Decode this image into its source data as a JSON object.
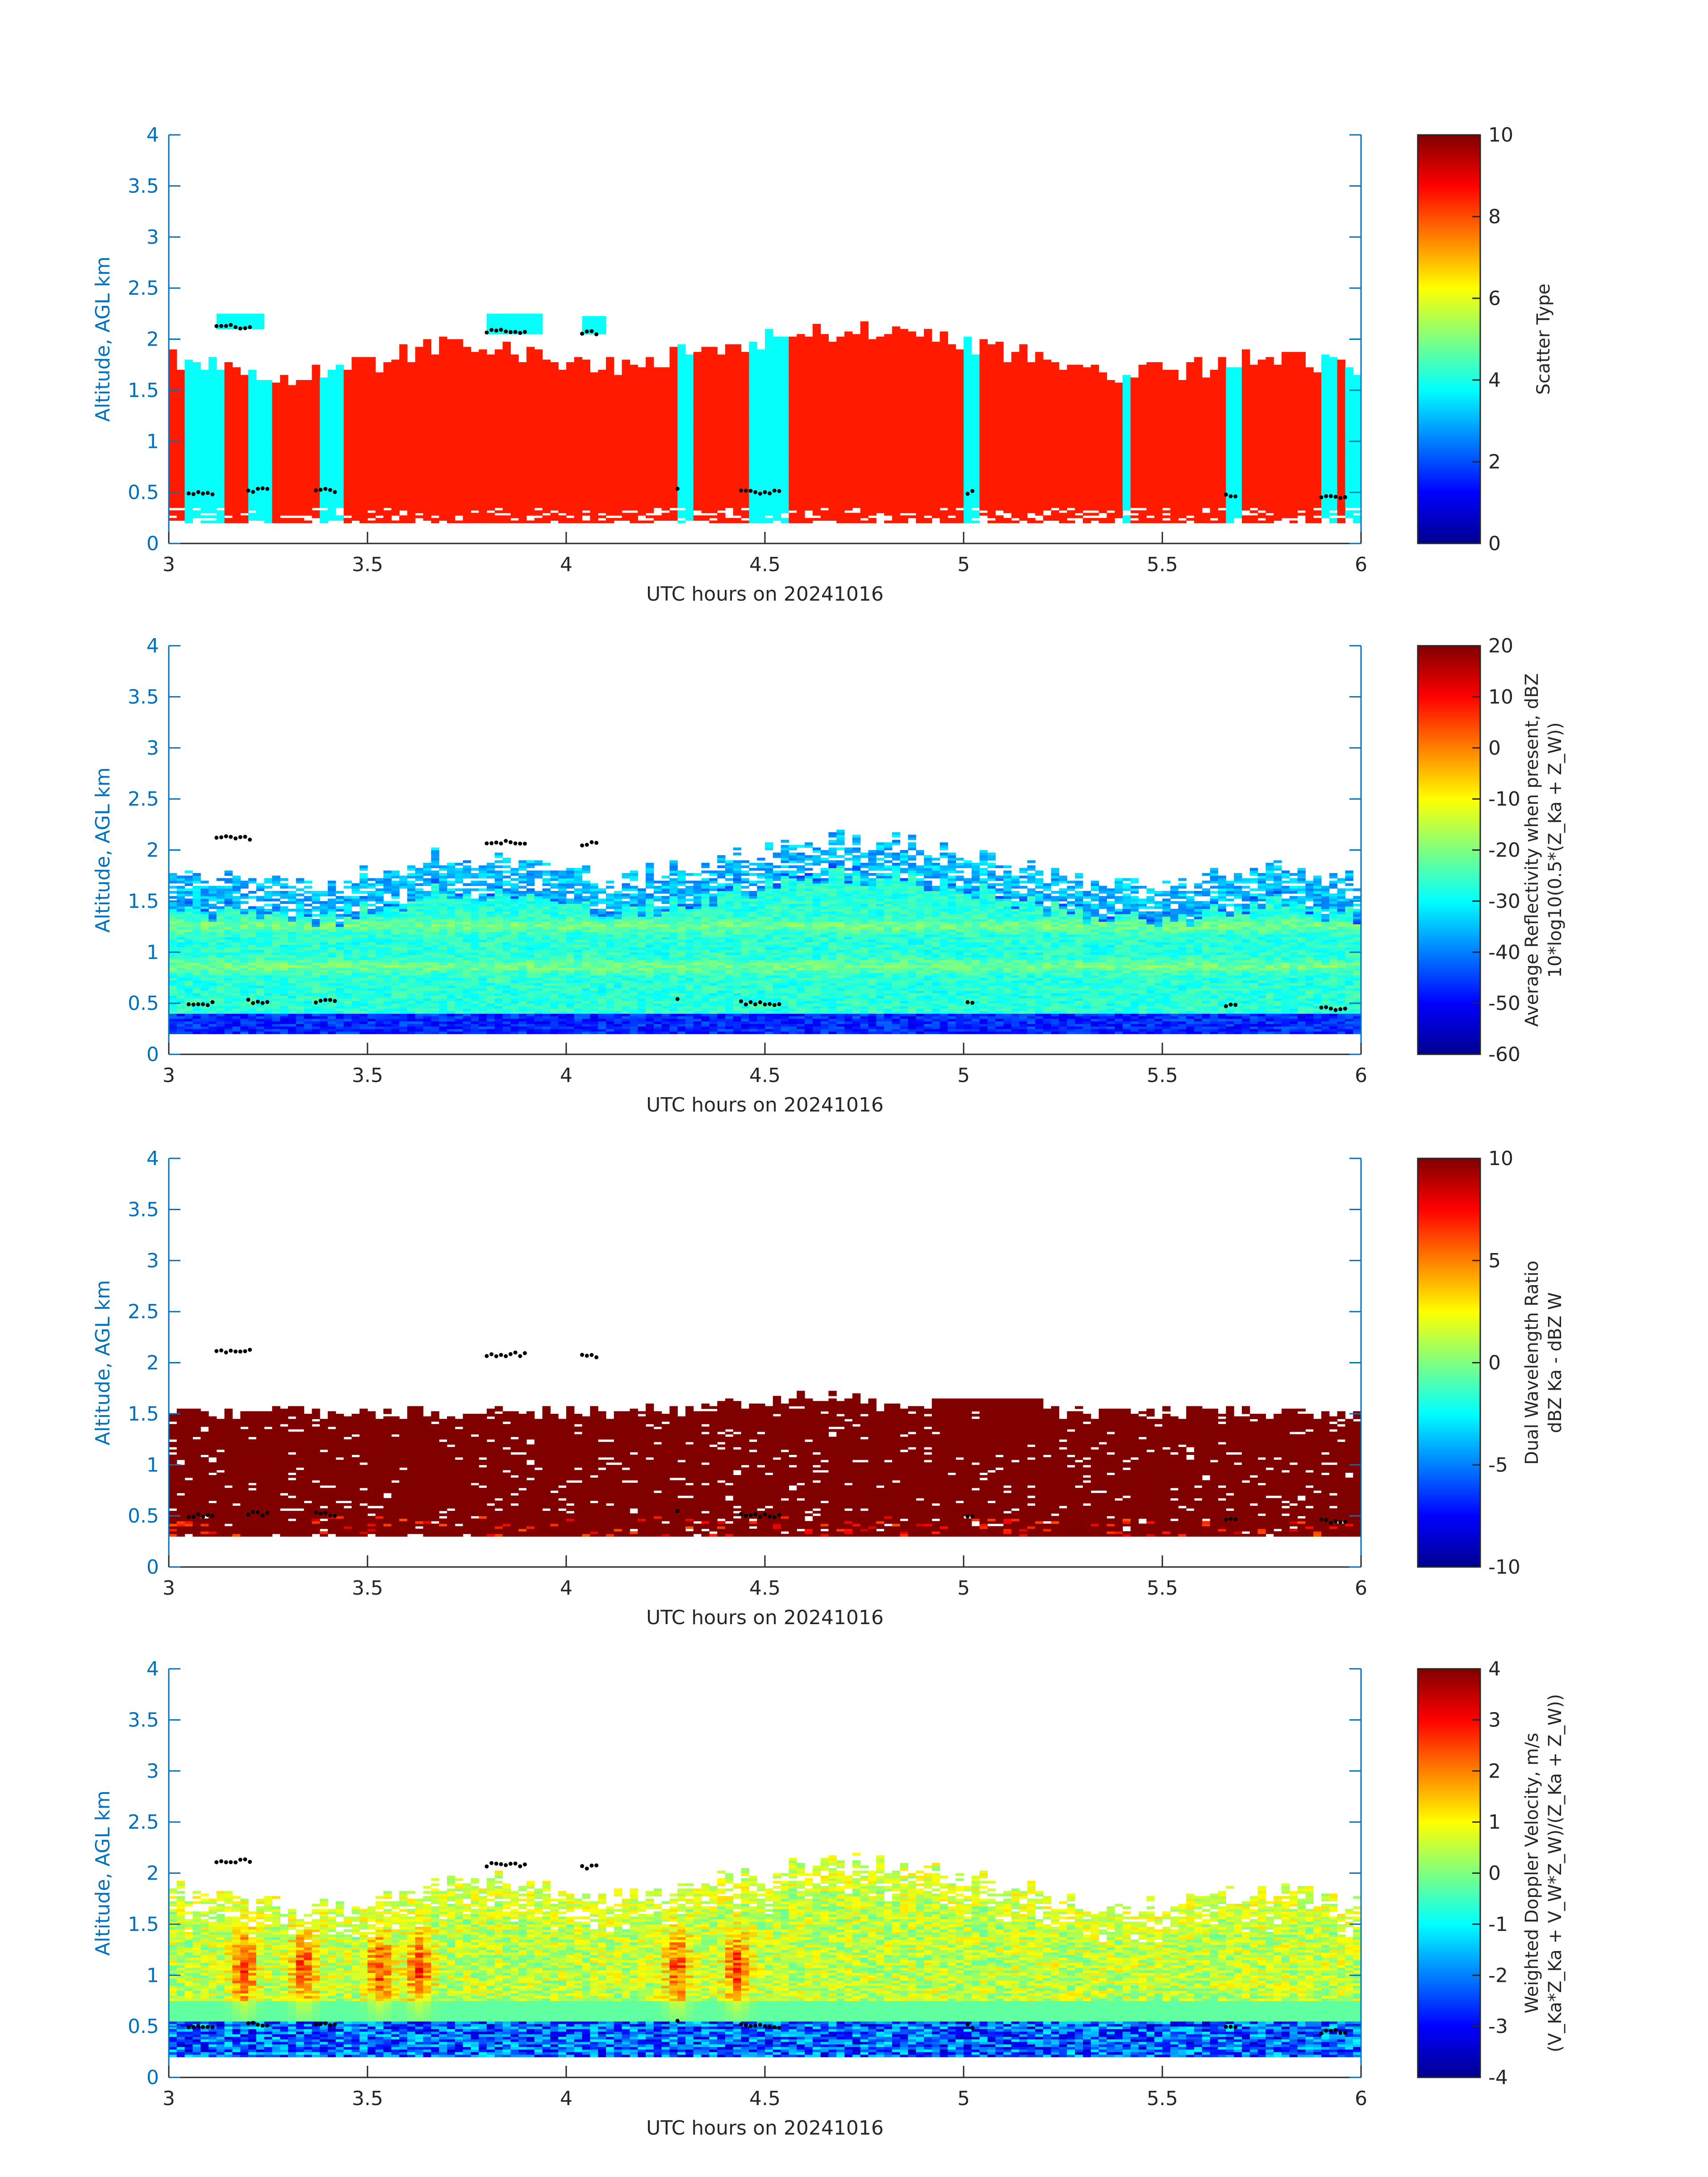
{
  "figure": {
    "axis_color": "#0072BD",
    "text_color": "#262626"
  },
  "chart_data": [
    {
      "type": "heatmap",
      "title": "",
      "xlabel": "UTC hours on 20241016",
      "ylabel": "Altitude, AGL km",
      "xlim": [
        3,
        6
      ],
      "ylim": [
        0,
        4
      ],
      "x_ticks": [
        "3",
        "3.5",
        "4",
        "4.5",
        "5",
        "5.5",
        "6"
      ],
      "y_ticks": [
        "0",
        "0.5",
        "1",
        "1.5",
        "2",
        "2.5",
        "3",
        "3.5",
        "4"
      ],
      "colorbar": {
        "label_lines": [
          "Scatter Type"
        ],
        "range": [
          0,
          10
        ],
        "ticks": [
          "0",
          "2",
          "4",
          "6",
          "8",
          "10"
        ],
        "colormap": "jet"
      },
      "field": {
        "dominant_value": 8.5,
        "secondary_value": 3.8,
        "secondary_columns_utc": [
          [
            3.04,
            3.12
          ],
          [
            3.2,
            3.25
          ],
          [
            3.37,
            3.42
          ],
          [
            4.28,
            4.3
          ],
          [
            4.44,
            4.46
          ],
          [
            4.48,
            4.54
          ],
          [
            5.0,
            5.03
          ],
          [
            5.39,
            5.41
          ],
          [
            5.65,
            5.68
          ],
          [
            5.9,
            5.93
          ],
          [
            5.96,
            5.98
          ]
        ],
        "upper_patches_utc": [
          [
            3.12,
            3.22,
            2.1,
            2.25
          ],
          [
            3.8,
            3.92,
            2.05,
            2.25
          ],
          [
            4.04,
            4.09,
            2.05,
            2.2
          ]
        ],
        "cloud_top_km": [
          1.75,
          1.75,
          1.8,
          1.9,
          1.95,
          2.0,
          1.95,
          1.85,
          1.9,
          2.05,
          2.1,
          2.2,
          2.0,
          1.8,
          1.75,
          1.7,
          1.7,
          1.75,
          1.72,
          1.75
        ],
        "cloud_base_km": 0.18,
        "lidar_base_dots_km": 0.5
      }
    },
    {
      "type": "heatmap",
      "title": "",
      "xlabel": "UTC hours on 20241016",
      "ylabel": "Altitude, AGL km",
      "xlim": [
        3,
        6
      ],
      "ylim": [
        0,
        4
      ],
      "x_ticks": [
        "3",
        "3.5",
        "4",
        "4.5",
        "5",
        "5.5",
        "6"
      ],
      "y_ticks": [
        "0",
        "0.5",
        "1",
        "1.5",
        "2",
        "2.5",
        "3",
        "3.5",
        "4"
      ],
      "colorbar": {
        "label_lines": [
          "Average Reflectivity when present, dBZ",
          "10*log10(0.5*(Z_Ka + Z_W))"
        ],
        "range": [
          -60,
          20
        ],
        "ticks": [
          "-60",
          "-50",
          "-40",
          "-30",
          "-20",
          "-10",
          "0",
          "10",
          "20"
        ],
        "colormap": "jet"
      },
      "field": {
        "core_value_dbz": -27,
        "edge_value_dbz": -45,
        "base_value_dbz": -52,
        "bright_bands_km": [
          0.85,
          1.25
        ],
        "cloud_base_km": 0.18
      }
    },
    {
      "type": "heatmap",
      "title": "",
      "xlabel": "UTC hours on 20241016",
      "ylabel": "Altitude, AGL km",
      "xlim": [
        3,
        6
      ],
      "ylim": [
        0,
        4
      ],
      "x_ticks": [
        "3",
        "3.5",
        "4",
        "4.5",
        "5",
        "5.5",
        "6"
      ],
      "y_ticks": [
        "0",
        "0.5",
        "1",
        "1.5",
        "2",
        "2.5",
        "3",
        "3.5",
        "4"
      ],
      "colorbar": {
        "label_lines": [
          "Dual Wavelength Ratio",
          "dBZ Ka - dBZ W"
        ],
        "range": [
          -10,
          10
        ],
        "ticks": [
          "-10",
          "-5",
          "0",
          "5",
          "10"
        ],
        "colormap": "jet"
      },
      "field": {
        "dominant_value_db": 10,
        "top_km": 1.5,
        "base_km": 0.3
      }
    },
    {
      "type": "heatmap",
      "title": "",
      "xlabel": "UTC hours on 20241016",
      "ylabel": "Altitude, AGL km",
      "xlim": [
        3,
        6
      ],
      "ylim": [
        0,
        4
      ],
      "x_ticks": [
        "3",
        "3.5",
        "4",
        "4.5",
        "5",
        "5.5",
        "6"
      ],
      "y_ticks": [
        "0",
        "0.5",
        "1",
        "1.5",
        "2",
        "2.5",
        "3",
        "3.5",
        "4"
      ],
      "colorbar": {
        "label_lines": [
          "Weighted Doppler Velocity, m/s",
          "(V_Ka*Z_Ka + V_W*Z_W)/(Z_Ka + Z_W))"
        ],
        "range": [
          -4,
          4
        ],
        "ticks": [
          "-4",
          "-3",
          "-2",
          "-1",
          "0",
          "1",
          "2",
          "3",
          "4"
        ],
        "colormap": "jet"
      },
      "field": {
        "core_value_ms": 0.5,
        "updraft_columns_utc": [
          3.18,
          3.33,
          3.52,
          3.62,
          4.27,
          4.42
        ],
        "updraft_value_ms": 2.5,
        "base_value_ms": -3.5,
        "cloud_base_km": 0.18
      }
    }
  ]
}
